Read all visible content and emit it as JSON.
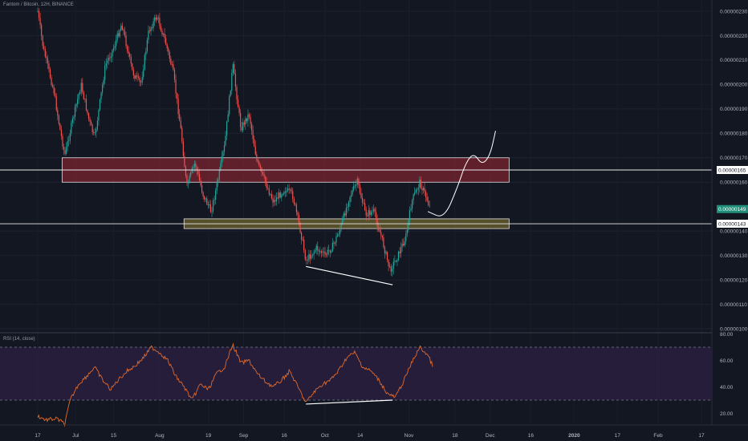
{
  "header": {
    "symbol": "Fantom / Bitcoin, 12H, BINANCE",
    "indicator": "RSI (14, close)"
  },
  "colors": {
    "background": "#131722",
    "up": "#26a69a",
    "down": "#ef5350",
    "rsi_line": "#e06a2c",
    "resistance_zone": "#7a2430",
    "support_zone": "#6e6330",
    "rsi_band": "#2a1f40",
    "last_price_tag": "#1f8f7a"
  },
  "chart_data": [
    {
      "type": "candlestick",
      "title": "Fantom / Bitcoin, 12H, BINANCE",
      "x_ticks": [
        "17",
        "Jul",
        "15",
        "Aug",
        "19",
        "Sep",
        "16",
        "Oct",
        "14",
        "Nov",
        "18",
        "Dec",
        "16",
        "2020",
        "17",
        "Feb",
        "17"
      ],
      "y_ticks": [
        "0.00000230",
        "0.00000220",
        "0.00000210",
        "0.00000200",
        "0.00000190",
        "0.00000180",
        "0.00000170",
        "0.00000160",
        "0.00000140",
        "0.00000130",
        "0.00000120",
        "0.00000110",
        "0.00000100"
      ],
      "ylim": [
        1e-06,
        2.3e-06
      ],
      "price_labels": {
        "resistance": "0.00000165",
        "last": "0.00000149",
        "support": "0.00000143"
      },
      "zones": [
        {
          "name": "resistance",
          "low": 1.6e-06,
          "high": 1.7e-06,
          "from": "2019-06-26",
          "to": "2019-12-08"
        },
        {
          "name": "support",
          "low": 1.41e-06,
          "high": 1.45e-06,
          "from": "2019-08-10",
          "to": "2019-12-08"
        }
      ],
      "horizontal_lines": [
        1.65e-06,
        1.43e-06
      ],
      "divergence_line": {
        "from": [
          "2019-09-24",
          1.255e-06
        ],
        "to": [
          "2019-10-26",
          1.18e-06
        ]
      },
      "projection": [
        [
          "2019-11-08",
          1.48e-06
        ],
        [
          "2019-11-14",
          1.45e-06
        ],
        [
          "2019-11-19",
          1.58e-06
        ],
        [
          "2019-11-22",
          1.68e-06
        ],
        [
          "2019-11-25",
          1.72e-06
        ],
        [
          "2019-11-28",
          1.67e-06
        ],
        [
          "2019-12-01",
          1.71e-06
        ],
        [
          "2019-12-03",
          1.81e-06
        ]
      ],
      "closes_polyline": [
        [
          "2019-06-17",
          2.3e-06
        ],
        [
          "2019-06-19",
          2.15e-06
        ],
        [
          "2019-06-21",
          2.06e-06
        ],
        [
          "2019-06-23",
          1.97e-06
        ],
        [
          "2019-06-25",
          1.83e-06
        ],
        [
          "2019-06-27",
          1.71e-06
        ],
        [
          "2019-06-30",
          1.86e-06
        ],
        [
          "2019-07-03",
          2e-06
        ],
        [
          "2019-07-06",
          1.85e-06
        ],
        [
          "2019-07-08",
          1.78e-06
        ],
        [
          "2019-07-12",
          2.08e-06
        ],
        [
          "2019-07-15",
          2.15e-06
        ],
        [
          "2019-07-18",
          2.25e-06
        ],
        [
          "2019-07-22",
          2.05e-06
        ],
        [
          "2019-07-25",
          2e-06
        ],
        [
          "2019-07-28",
          2.22e-06
        ],
        [
          "2019-07-31",
          2.28e-06
        ],
        [
          "2019-08-03",
          2.18e-06
        ],
        [
          "2019-08-06",
          2.05e-06
        ],
        [
          "2019-08-09",
          1.8e-06
        ],
        [
          "2019-08-11",
          1.58e-06
        ],
        [
          "2019-08-14",
          1.68e-06
        ],
        [
          "2019-08-17",
          1.55e-06
        ],
        [
          "2019-08-20",
          1.48e-06
        ],
        [
          "2019-08-22",
          1.58e-06
        ],
        [
          "2019-08-25",
          1.75e-06
        ],
        [
          "2019-08-28",
          2.08e-06
        ],
        [
          "2019-08-31",
          1.82e-06
        ],
        [
          "2019-09-03",
          1.88e-06
        ],
        [
          "2019-09-06",
          1.68e-06
        ],
        [
          "2019-09-09",
          1.6e-06
        ],
        [
          "2019-09-12",
          1.52e-06
        ],
        [
          "2019-09-16",
          1.57e-06
        ],
        [
          "2019-09-19",
          1.55e-06
        ],
        [
          "2019-09-22",
          1.4e-06
        ],
        [
          "2019-09-24",
          1.28e-06
        ],
        [
          "2019-09-28",
          1.33e-06
        ],
        [
          "2019-10-01",
          1.3e-06
        ],
        [
          "2019-10-04",
          1.34e-06
        ],
        [
          "2019-10-07",
          1.42e-06
        ],
        [
          "2019-10-10",
          1.54e-06
        ],
        [
          "2019-10-13",
          1.6e-06
        ],
        [
          "2019-10-16",
          1.47e-06
        ],
        [
          "2019-10-19",
          1.48e-06
        ],
        [
          "2019-10-22",
          1.37e-06
        ],
        [
          "2019-10-25",
          1.24e-06
        ],
        [
          "2019-10-28",
          1.3e-06
        ],
        [
          "2019-10-31",
          1.38e-06
        ],
        [
          "2019-11-02",
          1.52e-06
        ],
        [
          "2019-11-05",
          1.6e-06
        ],
        [
          "2019-11-07",
          1.55e-06
        ],
        [
          "2019-11-09",
          1.49e-06
        ]
      ]
    },
    {
      "type": "line",
      "title": "RSI (14, close)",
      "y_ticks": [
        "80.00",
        "60.00",
        "40.00",
        "20.00"
      ],
      "ylim": [
        10,
        85
      ],
      "band": [
        30,
        70
      ],
      "divergence_line": {
        "from": [
          "2019-09-24",
          27
        ],
        "to": [
          "2019-10-26",
          30
        ]
      },
      "series": [
        {
          "points": [
            [
              "2019-06-17",
              18
            ],
            [
              "2019-06-20",
              15
            ],
            [
              "2019-06-24",
              16
            ],
            [
              "2019-06-27",
              12
            ],
            [
              "2019-06-29",
              30
            ],
            [
              "2019-07-02",
              42
            ],
            [
              "2019-07-05",
              48
            ],
            [
              "2019-07-08",
              55
            ],
            [
              "2019-07-11",
              45
            ],
            [
              "2019-07-14",
              38
            ],
            [
              "2019-07-17",
              46
            ],
            [
              "2019-07-20",
              52
            ],
            [
              "2019-07-23",
              56
            ],
            [
              "2019-07-26",
              62
            ],
            [
              "2019-07-29",
              70
            ],
            [
              "2019-08-01",
              66
            ],
            [
              "2019-08-04",
              60
            ],
            [
              "2019-08-07",
              48
            ],
            [
              "2019-08-10",
              40
            ],
            [
              "2019-08-13",
              30
            ],
            [
              "2019-08-16",
              42
            ],
            [
              "2019-08-19",
              38
            ],
            [
              "2019-08-22",
              50
            ],
            [
              "2019-08-25",
              55
            ],
            [
              "2019-08-28",
              72
            ],
            [
              "2019-08-31",
              58
            ],
            [
              "2019-09-03",
              60
            ],
            [
              "2019-09-06",
              50
            ],
            [
              "2019-09-09",
              44
            ],
            [
              "2019-09-12",
              40
            ],
            [
              "2019-09-15",
              45
            ],
            [
              "2019-09-18",
              52
            ],
            [
              "2019-09-21",
              40
            ],
            [
              "2019-09-24",
              28
            ],
            [
              "2019-09-27",
              36
            ],
            [
              "2019-09-30",
              42
            ],
            [
              "2019-10-03",
              45
            ],
            [
              "2019-10-06",
              52
            ],
            [
              "2019-10-09",
              62
            ],
            [
              "2019-10-12",
              66
            ],
            [
              "2019-10-15",
              55
            ],
            [
              "2019-10-18",
              52
            ],
            [
              "2019-10-21",
              45
            ],
            [
              "2019-10-24",
              35
            ],
            [
              "2019-10-27",
              32
            ],
            [
              "2019-10-30",
              44
            ],
            [
              "2019-11-02",
              58
            ],
            [
              "2019-11-05",
              70
            ],
            [
              "2019-11-08",
              64
            ],
            [
              "2019-11-10",
              55
            ]
          ]
        }
      ]
    }
  ]
}
